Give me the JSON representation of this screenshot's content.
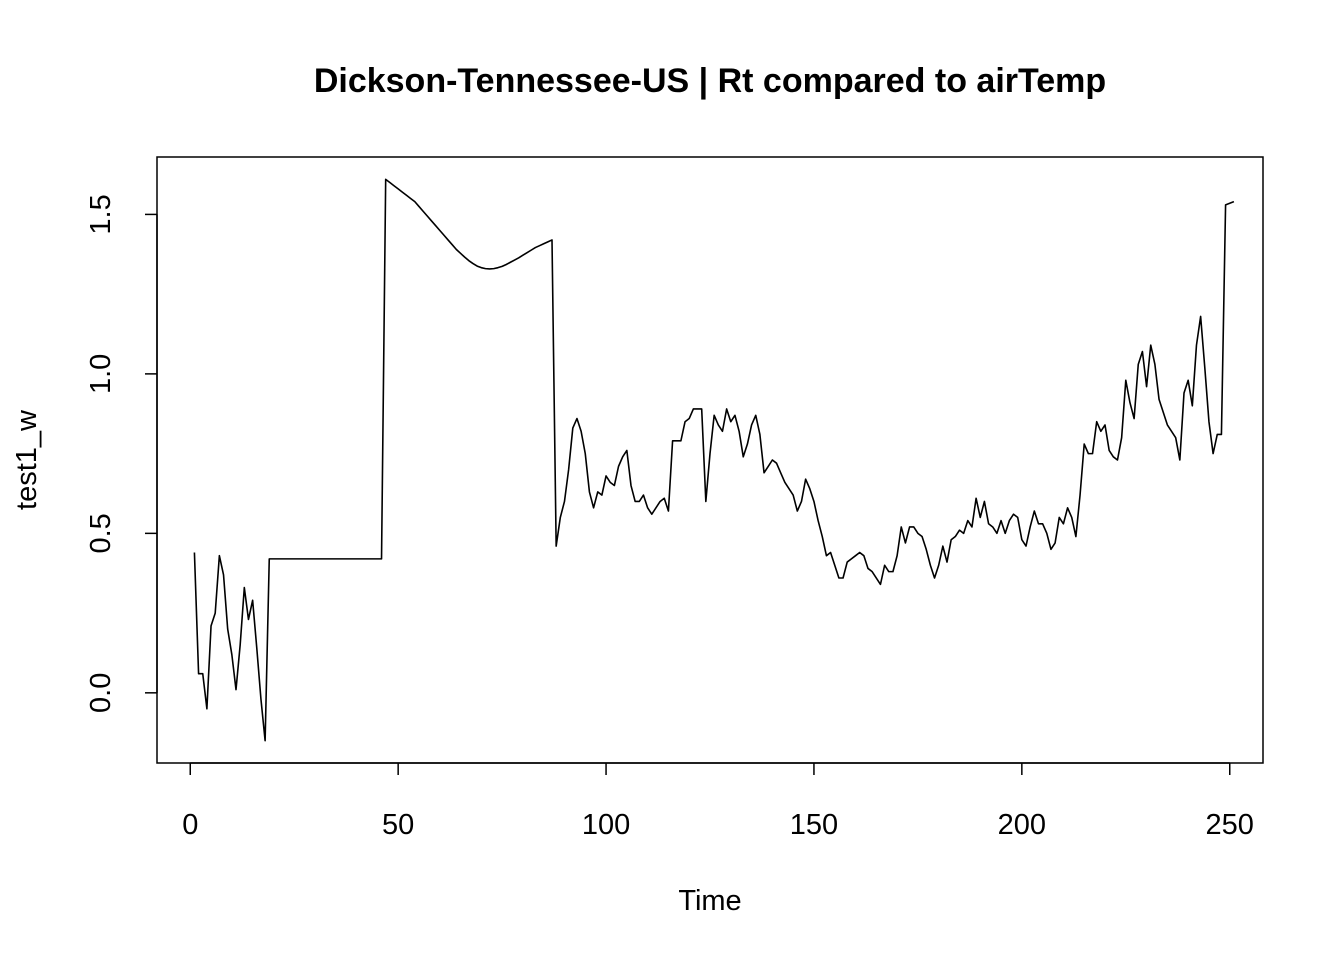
{
  "chart_data": {
    "type": "line",
    "title": "Dickson-Tennessee-US | Rt compared to airTemp",
    "xlabel": "Time",
    "ylabel": "test1_w",
    "xlim": [
      -8,
      258
    ],
    "ylim": [
      -0.22,
      1.68
    ],
    "x_ticks": [
      0,
      50,
      100,
      150,
      200,
      250
    ],
    "x_tick_labels": [
      "0",
      "50",
      "100",
      "150",
      "200",
      "250"
    ],
    "y_ticks": [
      0.0,
      0.5,
      1.0,
      1.5
    ],
    "y_tick_labels": [
      "0.0",
      "0.5",
      "1.0",
      "1.5"
    ],
    "grid": false,
    "legend": "none",
    "line_color": "#000000",
    "x_start": 1,
    "values": [
      0.44,
      0.06,
      0.06,
      -0.05,
      0.21,
      0.25,
      0.43,
      0.37,
      0.2,
      0.12,
      0.01,
      0.15,
      0.33,
      0.23,
      0.29,
      0.14,
      -0.02,
      -0.15,
      0.42,
      0.42,
      0.42,
      0.42,
      0.42,
      0.42,
      0.42,
      0.42,
      0.42,
      0.42,
      0.42,
      0.42,
      0.42,
      0.42,
      0.42,
      0.42,
      0.42,
      0.42,
      0.42,
      0.42,
      0.42,
      0.42,
      0.42,
      0.42,
      0.42,
      0.42,
      0.42,
      0.42,
      1.61,
      1.6,
      1.59,
      1.58,
      1.57,
      1.56,
      1.55,
      1.54,
      1.525,
      1.51,
      1.495,
      1.48,
      1.465,
      1.45,
      1.435,
      1.42,
      1.405,
      1.39,
      1.378,
      1.366,
      1.355,
      1.346,
      1.338,
      1.333,
      1.33,
      1.329,
      1.33,
      1.333,
      1.337,
      1.343,
      1.35,
      1.357,
      1.364,
      1.372,
      1.38,
      1.388,
      1.396,
      1.402,
      1.408,
      1.414,
      1.42,
      0.46,
      0.55,
      0.6,
      0.7,
      0.83,
      0.86,
      0.82,
      0.75,
      0.63,
      0.58,
      0.63,
      0.62,
      0.68,
      0.66,
      0.65,
      0.71,
      0.74,
      0.76,
      0.65,
      0.6,
      0.6,
      0.62,
      0.58,
      0.56,
      0.58,
      0.6,
      0.61,
      0.57,
      0.79,
      0.79,
      0.79,
      0.85,
      0.86,
      0.89,
      0.89,
      0.89,
      0.6,
      0.75,
      0.87,
      0.84,
      0.82,
      0.89,
      0.85,
      0.87,
      0.82,
      0.74,
      0.78,
      0.84,
      0.87,
      0.81,
      0.69,
      0.71,
      0.73,
      0.72,
      0.69,
      0.66,
      0.64,
      0.62,
      0.57,
      0.6,
      0.67,
      0.64,
      0.6,
      0.54,
      0.49,
      0.43,
      0.44,
      0.4,
      0.36,
      0.36,
      0.41,
      0.42,
      0.43,
      0.44,
      0.43,
      0.39,
      0.38,
      0.36,
      0.34,
      0.4,
      0.38,
      0.38,
      0.43,
      0.52,
      0.47,
      0.52,
      0.52,
      0.5,
      0.49,
      0.45,
      0.4,
      0.36,
      0.4,
      0.46,
      0.41,
      0.48,
      0.49,
      0.51,
      0.5,
      0.54,
      0.52,
      0.61,
      0.55,
      0.6,
      0.53,
      0.52,
      0.5,
      0.54,
      0.5,
      0.54,
      0.56,
      0.55,
      0.48,
      0.46,
      0.52,
      0.57,
      0.53,
      0.53,
      0.5,
      0.45,
      0.47,
      0.55,
      0.53,
      0.58,
      0.55,
      0.49,
      0.62,
      0.78,
      0.75,
      0.75,
      0.85,
      0.82,
      0.84,
      0.76,
      0.74,
      0.73,
      0.8,
      0.98,
      0.91,
      0.86,
      1.03,
      1.07,
      0.96,
      1.09,
      1.03,
      0.92,
      0.88,
      0.84,
      0.82,
      0.8,
      0.73,
      0.94,
      0.98,
      0.9,
      1.09,
      1.18,
      1.02,
      0.85,
      0.75,
      0.81,
      0.81,
      1.53,
      1.535,
      1.54
    ]
  }
}
